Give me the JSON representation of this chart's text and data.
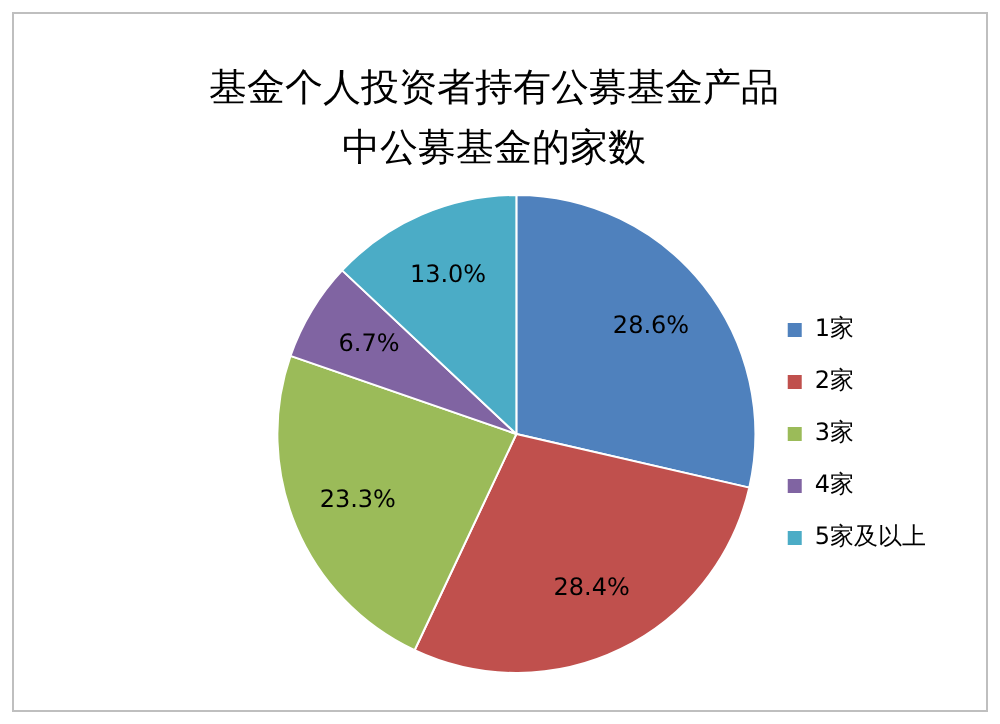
{
  "chart_data": {
    "type": "pie",
    "title": "基金个人投资者持有公募基金产品中公募基金的家数",
    "categories": [
      "1家",
      "2家",
      "3家",
      "4家",
      "5家及以上"
    ],
    "values": [
      28.6,
      28.4,
      23.3,
      6.7,
      13.0
    ],
    "colors": [
      "#4f81bd",
      "#c0504d",
      "#9bbb59",
      "#8064a2",
      "#4bacc6"
    ],
    "value_labels": [
      "28.6%",
      "28.4%",
      "23.3%",
      "6.7%",
      "13.0%"
    ],
    "legend": "right"
  }
}
